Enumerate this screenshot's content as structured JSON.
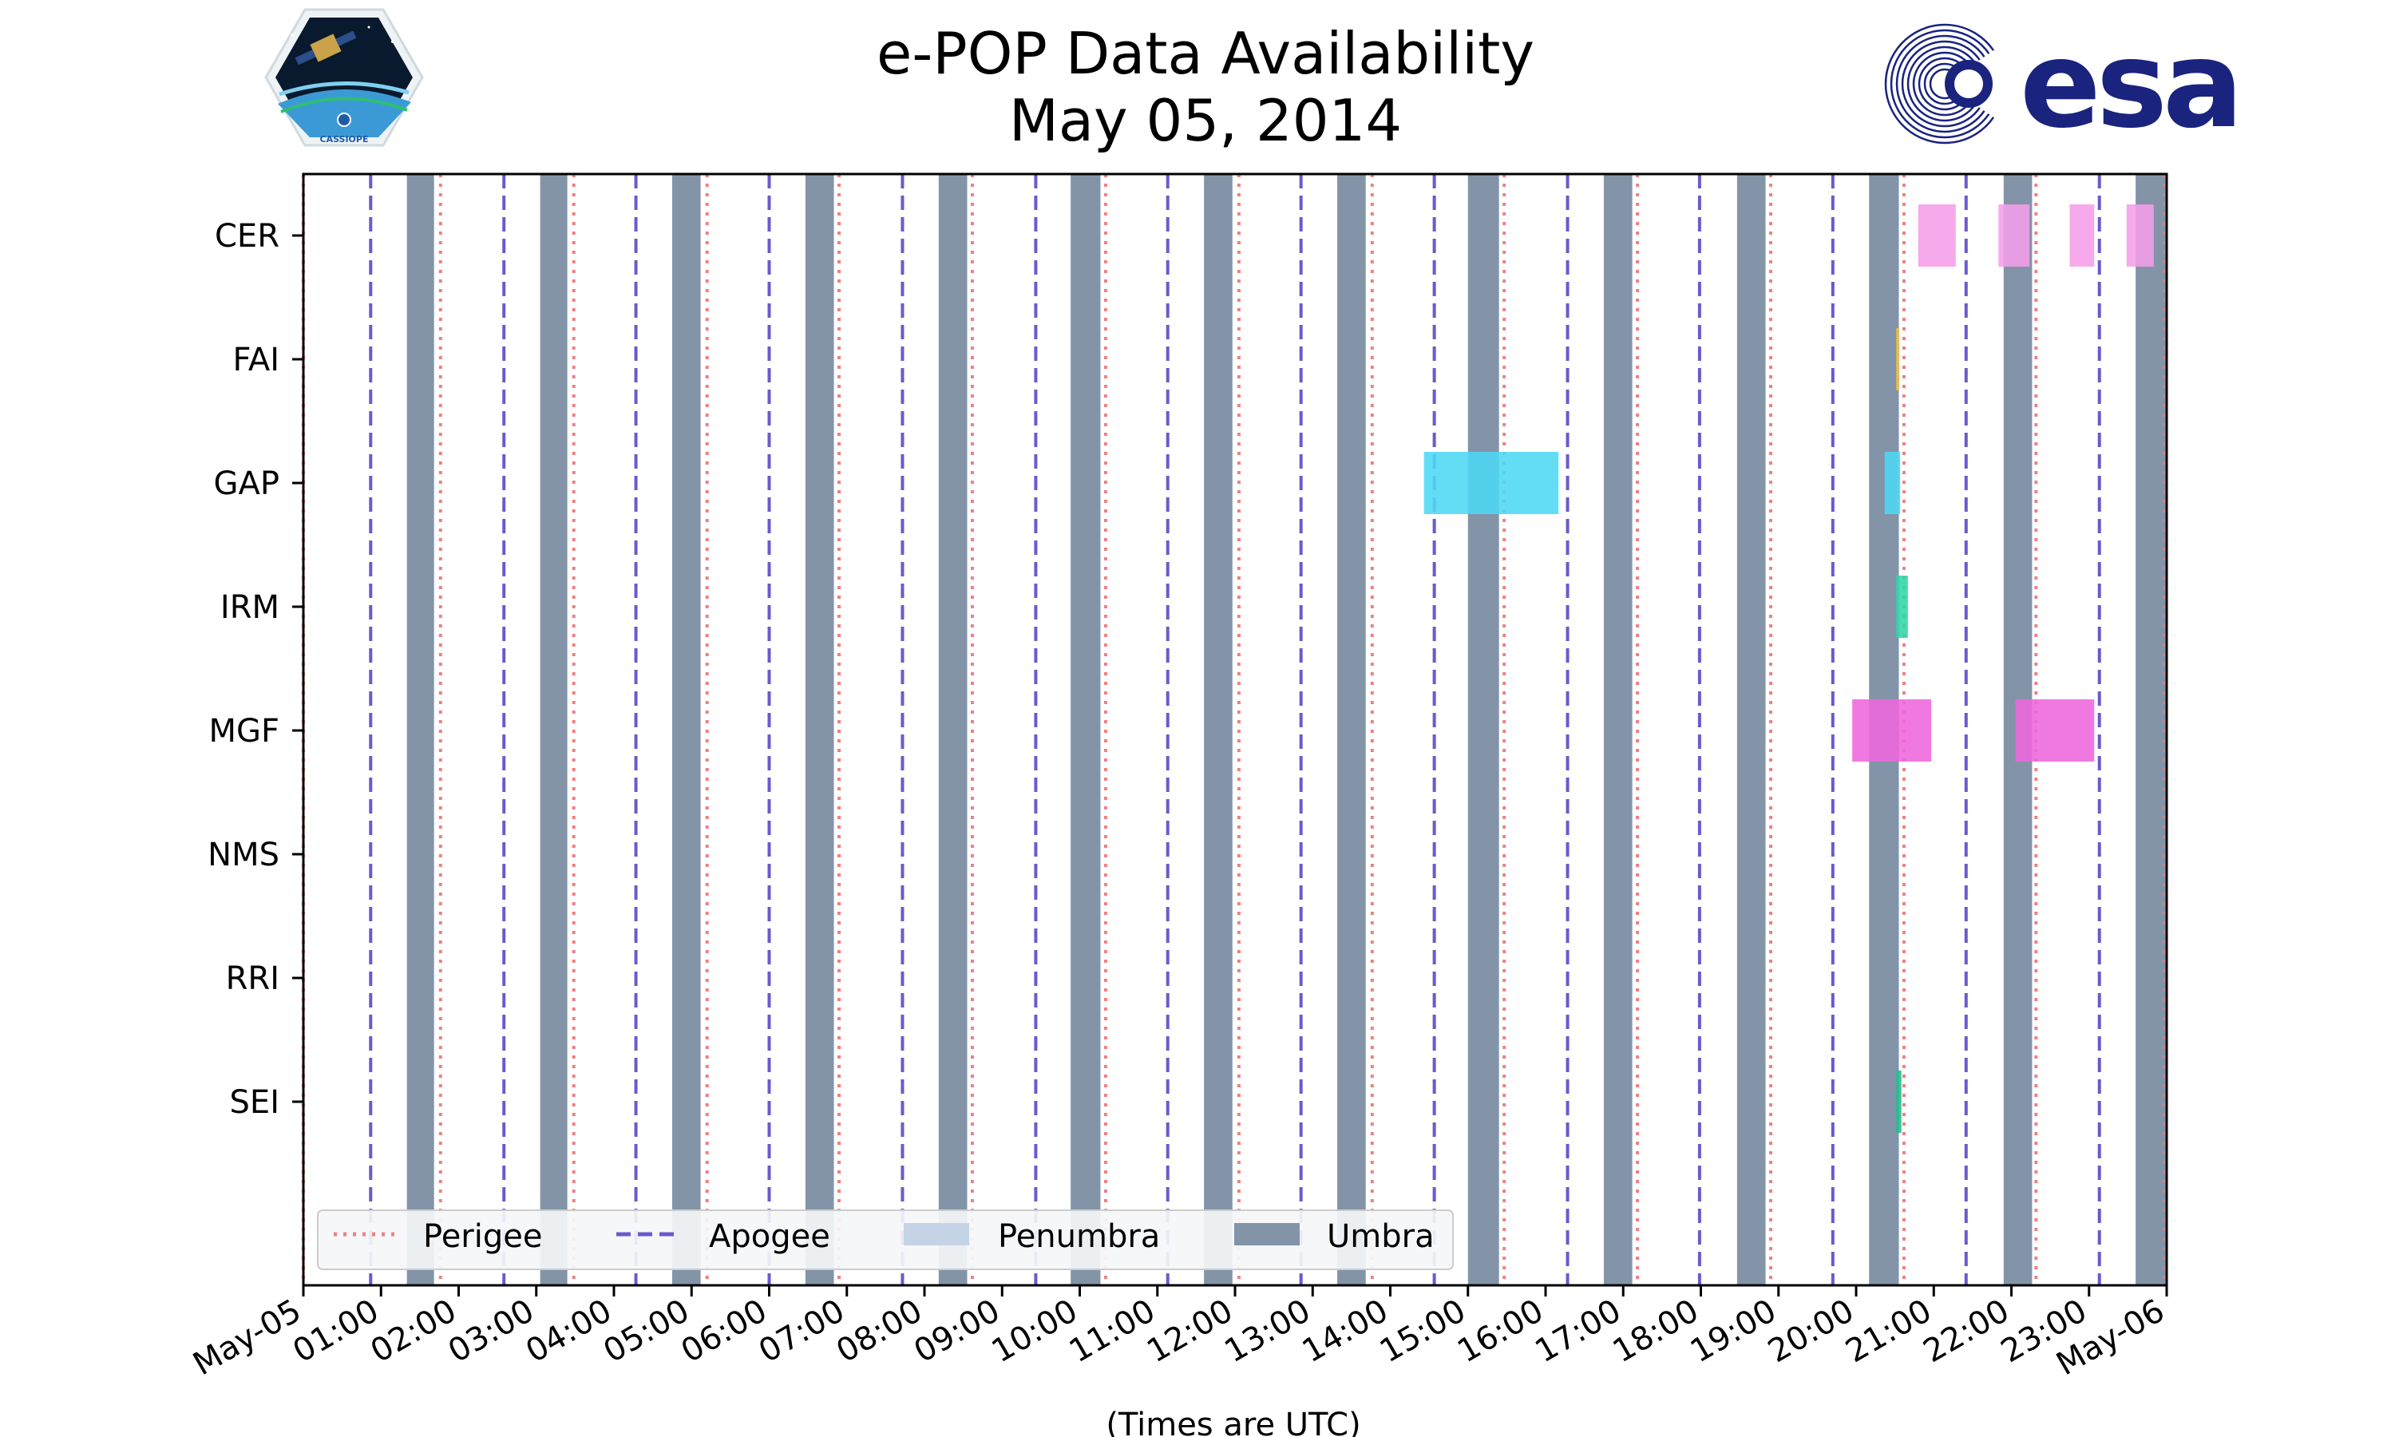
{
  "chart_data": {
    "type": "timeline",
    "title": "e-POP Data Availability",
    "subtitle": "May 05, 2014",
    "xlabel": "(Times are UTC)",
    "x_range": [
      "2014-05-05 00:00",
      "2014-05-06 00:00"
    ],
    "x_tick_labels": [
      "May-05",
      "01:00",
      "02:00",
      "03:00",
      "04:00",
      "05:00",
      "06:00",
      "07:00",
      "08:00",
      "09:00",
      "10:00",
      "11:00",
      "12:00",
      "13:00",
      "14:00",
      "15:00",
      "16:00",
      "17:00",
      "18:00",
      "19:00",
      "20:00",
      "21:00",
      "22:00",
      "23:00",
      "May-06"
    ],
    "instruments": [
      "CER",
      "FAI",
      "GAP",
      "IRM",
      "MGF",
      "NMS",
      "RRI",
      "SEI"
    ],
    "legend": {
      "placement": "lower-left",
      "entries": [
        {
          "label": "Perigee",
          "style": "dotted",
          "color": "#f08080"
        },
        {
          "label": "Apogee",
          "style": "dashed",
          "color": "#6a5acd"
        },
        {
          "label": "Penumbra",
          "style": "patch",
          "color": "#c4d3e6"
        },
        {
          "label": "Umbra",
          "style": "patch",
          "color": "#8394a8"
        }
      ]
    },
    "perigee_times": [
      "00:00",
      "01:46",
      "03:29",
      "05:12",
      "06:54",
      "08:37",
      "10:20",
      "12:03",
      "13:46",
      "15:28",
      "17:11",
      "18:54",
      "20:37",
      "22:19",
      "23:59"
    ],
    "apogee_times": [
      "00:52",
      "02:35",
      "04:17",
      "06:00",
      "07:43",
      "09:26",
      "11:08",
      "12:51",
      "14:34",
      "16:17",
      "17:59",
      "19:42",
      "21:25",
      "23:08"
    ],
    "umbra_intervals": [
      [
        "01:20",
        "01:41"
      ],
      [
        "03:03",
        "03:24"
      ],
      [
        "04:45",
        "05:07"
      ],
      [
        "06:28",
        "06:50"
      ],
      [
        "08:11",
        "08:33"
      ],
      [
        "09:53",
        "10:16"
      ],
      [
        "11:36",
        "11:58"
      ],
      [
        "13:19",
        "13:41"
      ],
      [
        "15:00",
        "15:24"
      ],
      [
        "16:45",
        "17:07"
      ],
      [
        "18:28",
        "18:50"
      ],
      [
        "20:10",
        "20:33"
      ],
      [
        "21:54",
        "22:16"
      ],
      [
        "23:36",
        "23:59"
      ]
    ],
    "data_intervals": [
      {
        "instrument": "CER",
        "start": "20:48",
        "end": "21:17",
        "color": "#f59ee8"
      },
      {
        "instrument": "CER",
        "start": "21:50",
        "end": "22:14",
        "color": "#f59ee8"
      },
      {
        "instrument": "CER",
        "start": "22:45",
        "end": "23:04",
        "color": "#f59ee8"
      },
      {
        "instrument": "CER",
        "start": "23:29",
        "end": "23:50",
        "color": "#f59ee8"
      },
      {
        "instrument": "FAI",
        "start": "20:31",
        "end": "20:33",
        "color": "#f5c04a"
      },
      {
        "instrument": "GAP",
        "start": "14:26",
        "end": "16:10",
        "color": "#4dd8f5"
      },
      {
        "instrument": "GAP",
        "start": "20:22",
        "end": "20:34",
        "color": "#4dd8f5"
      },
      {
        "instrument": "IRM",
        "start": "20:31",
        "end": "20:40",
        "color": "#2fd6a8"
      },
      {
        "instrument": "MGF",
        "start": "19:57",
        "end": "20:58",
        "color": "#ee66dd"
      },
      {
        "instrument": "MGF",
        "start": "22:03",
        "end": "23:04",
        "color": "#ee66dd"
      },
      {
        "instrument": "SEI",
        "start": "20:31",
        "end": "20:35",
        "color": "#1fbf8a"
      }
    ]
  },
  "logos": {
    "mission_logo_text": "CASSIOPE",
    "agency_logo_text": "esa",
    "agency_color": "#1a237e"
  }
}
